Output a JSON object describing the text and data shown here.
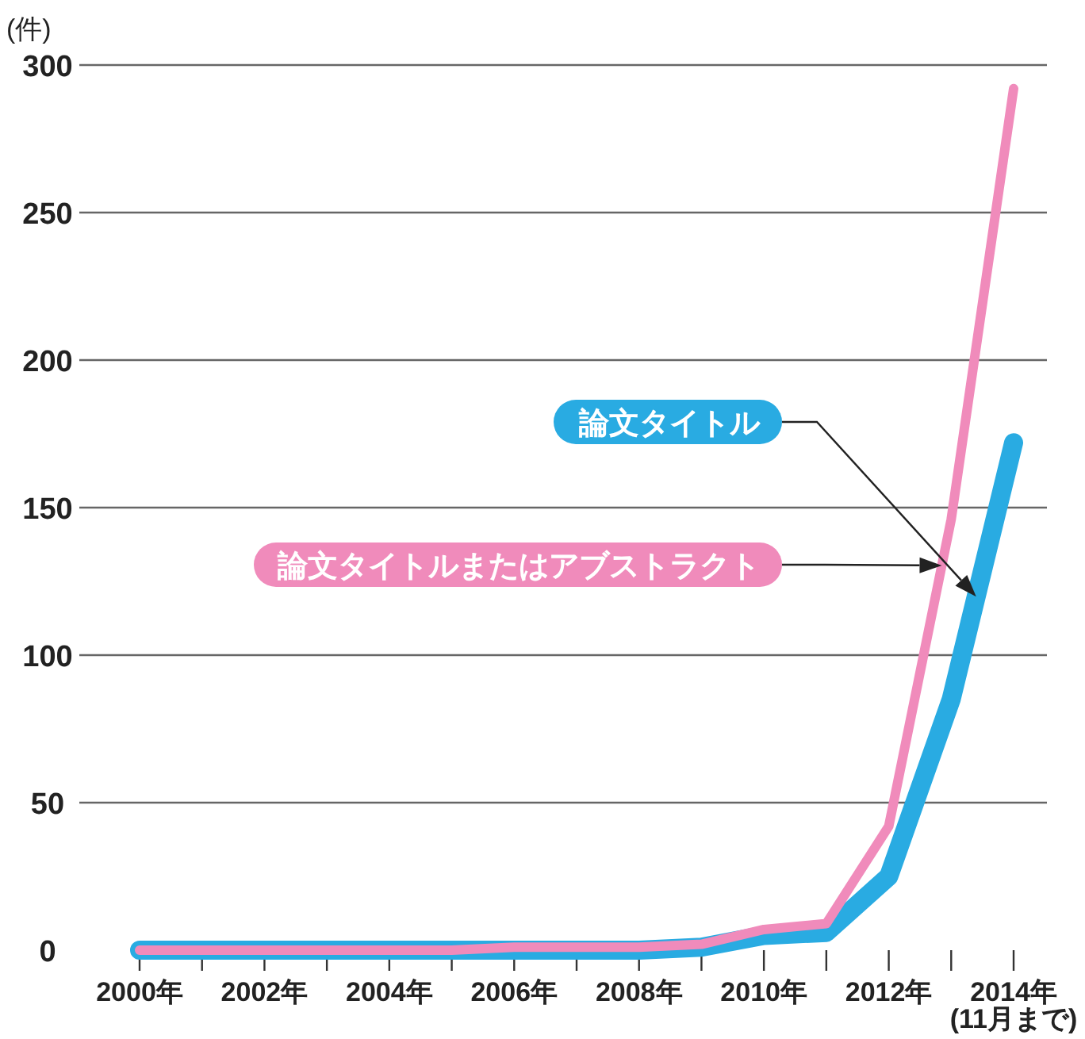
{
  "chart_data": {
    "type": "line",
    "ylabel": "(件)",
    "categories": [
      "2000年",
      null,
      "2002年",
      null,
      "2004年",
      null,
      "2006年",
      null,
      "2008年",
      null,
      "2010年",
      null,
      "2012年",
      null,
      "2014年\n(11月まで)"
    ],
    "series": [
      {
        "name": "論文タイトル",
        "color": "#29abe2",
        "values": [
          0,
          0,
          0,
          0,
          0,
          0,
          0,
          0,
          0,
          1,
          5,
          6,
          25,
          85,
          172
        ]
      },
      {
        "name": "論文タイトルまたはアブストラクト",
        "color": "#f08bbb",
        "values": [
          0,
          0,
          0,
          0,
          0,
          0,
          1,
          1,
          1,
          2,
          7,
          9,
          42,
          146,
          292
        ]
      }
    ],
    "ylim": [
      0,
      300
    ],
    "yticks": [
      0,
      50,
      100,
      150,
      200,
      250,
      300
    ],
    "grid": "y",
    "line_style": "solid",
    "marker": "none"
  }
}
